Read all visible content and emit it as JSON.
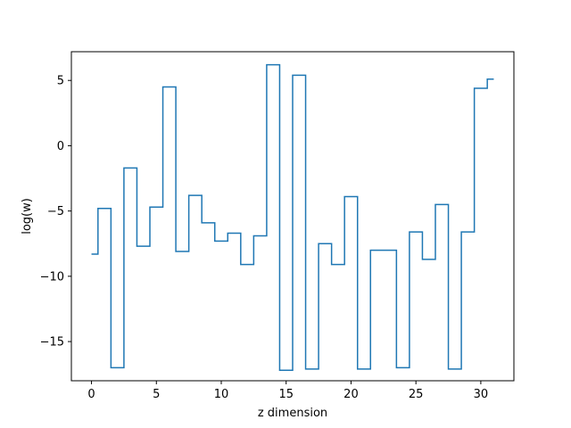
{
  "chart_data": {
    "type": "line",
    "drawstyle": "steps-mid",
    "title": "",
    "xlabel": "z dimension",
    "ylabel": "log(w)",
    "xlim": [
      -1.55,
      32.55
    ],
    "ylim": [
      -18.0,
      7.2
    ],
    "xticks": [
      0,
      5,
      10,
      15,
      20,
      25,
      30
    ],
    "xtick_labels": [
      "0",
      "5",
      "10",
      "15",
      "20",
      "25",
      "30"
    ],
    "yticks": [
      -15,
      -10,
      -5,
      0,
      5
    ],
    "ytick_labels": [
      "−15",
      "−10",
      "−5",
      "0",
      "5"
    ],
    "grid": false,
    "legend": "none",
    "line_color": "#1f77b4",
    "series": [
      {
        "x": [
          0,
          1,
          2,
          3,
          4,
          5,
          6,
          7,
          8,
          9,
          10,
          11,
          12,
          13,
          14,
          15,
          16,
          17,
          18,
          19,
          20,
          21,
          22,
          23,
          24,
          25,
          26,
          27,
          28,
          29,
          30,
          31
        ],
        "values": [
          -8.3,
          -4.8,
          -17.0,
          -1.7,
          -7.7,
          -4.7,
          4.5,
          -8.1,
          -3.8,
          -5.9,
          -7.3,
          -6.7,
          -9.1,
          -6.9,
          6.2,
          -17.2,
          5.4,
          -17.1,
          -7.5,
          -9.1,
          -3.9,
          -17.1,
          -8.0,
          -8.0,
          -17.0,
          -6.6,
          -8.7,
          -4.5,
          -17.1,
          -6.6,
          4.4,
          5.1
        ]
      }
    ]
  }
}
